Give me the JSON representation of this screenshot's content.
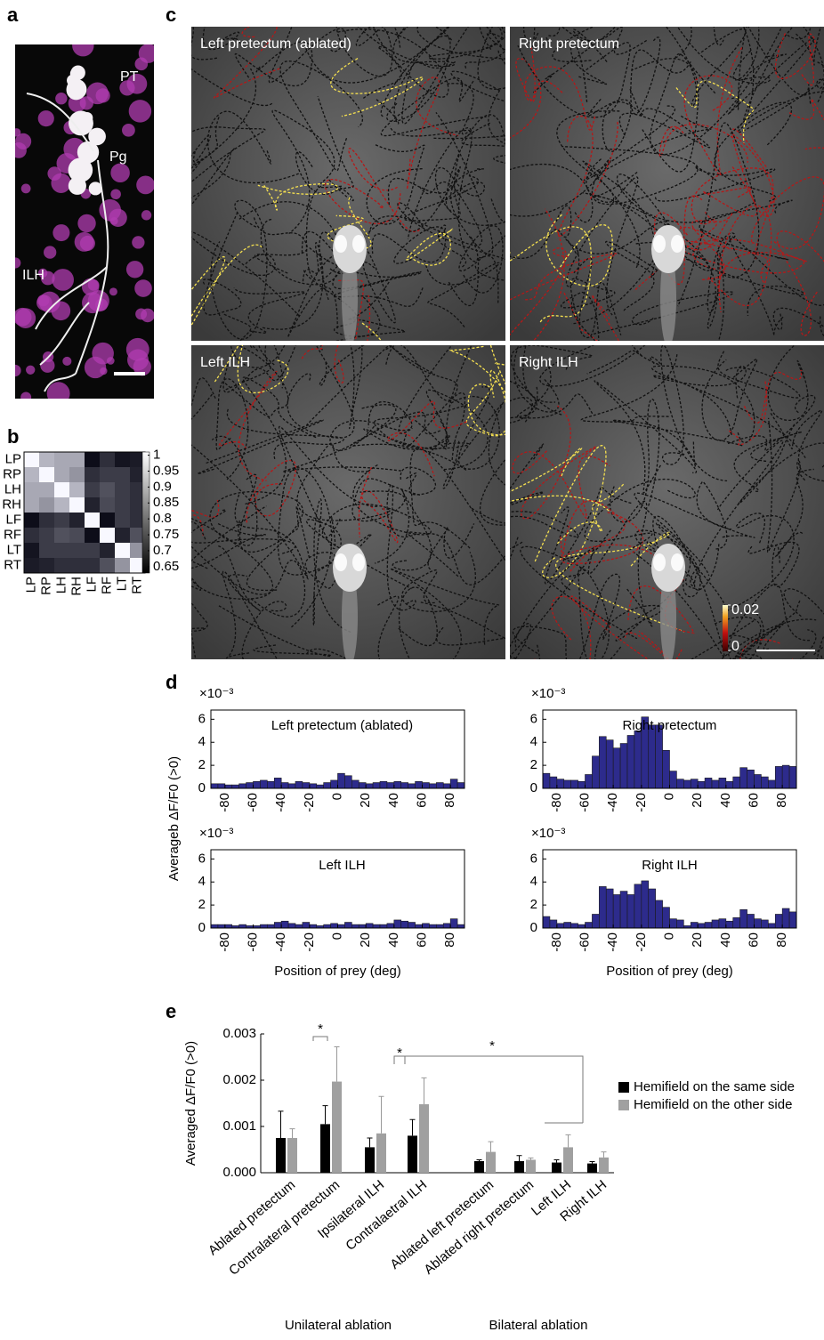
{
  "panel_labels": [
    "a",
    "b",
    "c",
    "d",
    "e"
  ],
  "panel_a": {
    "regions": [
      "PT",
      "Pg",
      "ILH"
    ]
  },
  "panel_c": {
    "titles": [
      "Left pretectum (ablated)",
      "Right pretectum",
      "Left ILH",
      "Right ILH"
    ],
    "colorbar_ticks": [
      0.02,
      0
    ]
  },
  "panel_d": {
    "ylabel": "Averageb ΔF/F0 (>0)"
  },
  "chart_data": [
    {
      "type": "heatmap",
      "row_labels": [
        "LP",
        "RP",
        "LH",
        "RH",
        "LF",
        "RF",
        "LT",
        "RT"
      ],
      "col_labels": [
        "LP",
        "RP",
        "LH",
        "RH",
        "LF",
        "RF",
        "LT",
        "RT"
      ],
      "values": [
        [
          1,
          0.9,
          0.88,
          0.88,
          0.65,
          0.7,
          0.66,
          0.67
        ],
        [
          0.9,
          1,
          0.88,
          0.85,
          0.7,
          0.72,
          0.72,
          0.68
        ],
        [
          0.88,
          0.88,
          1,
          0.9,
          0.72,
          0.75,
          0.72,
          0.7
        ],
        [
          0.88,
          0.85,
          0.9,
          1,
          0.68,
          0.74,
          0.72,
          0.7
        ],
        [
          0.65,
          0.7,
          0.72,
          0.68,
          1,
          0.65,
          0.72,
          0.7
        ],
        [
          0.7,
          0.72,
          0.75,
          0.74,
          0.65,
          1,
          0.68,
          0.75
        ],
        [
          0.66,
          0.72,
          0.72,
          0.72,
          0.72,
          0.68,
          1,
          0.85
        ],
        [
          0.67,
          0.68,
          0.7,
          0.7,
          0.7,
          0.75,
          0.85,
          1
        ]
      ],
      "clim": [
        0.63,
        1.01
      ],
      "colorbar_ticks": [
        1,
        0.95,
        0.9,
        0.85,
        0.8,
        0.75,
        0.7,
        0.65
      ]
    },
    {
      "type": "histogram",
      "title": "Left pretectum (ablated)",
      "offset_label": "×10⁻³",
      "color": "#2d2b8c",
      "bins": [
        -90,
        -85,
        -80,
        -75,
        -70,
        -65,
        -60,
        -55,
        -50,
        -45,
        -40,
        -35,
        -30,
        -25,
        -20,
        -15,
        -10,
        -5,
        0,
        5,
        10,
        15,
        20,
        25,
        30,
        35,
        40,
        45,
        50,
        55,
        60,
        65,
        70,
        75,
        80,
        85,
        90
      ],
      "values": [
        0.4,
        0.4,
        0.3,
        0.3,
        0.4,
        0.5,
        0.6,
        0.7,
        0.6,
        0.9,
        0.5,
        0.4,
        0.6,
        0.5,
        0.4,
        0.3,
        0.5,
        0.7,
        1.3,
        1.1,
        0.7,
        0.5,
        0.4,
        0.5,
        0.6,
        0.5,
        0.6,
        0.5,
        0.4,
        0.6,
        0.5,
        0.4,
        0.5,
        0.4,
        0.8,
        0.5
      ],
      "xlim": [
        -90,
        90
      ],
      "ylim": [
        0,
        6.8
      ],
      "xticks": [
        -80,
        -60,
        -40,
        -20,
        0,
        20,
        40,
        60,
        80
      ],
      "yticks": [
        0,
        2,
        4,
        6
      ]
    },
    {
      "type": "histogram",
      "title": "Right pretectum",
      "offset_label": "×10⁻³",
      "color": "#2d2b8c",
      "bins": [
        -90,
        -85,
        -80,
        -75,
        -70,
        -65,
        -60,
        -55,
        -50,
        -45,
        -40,
        -35,
        -30,
        -25,
        -20,
        -15,
        -10,
        -5,
        0,
        5,
        10,
        15,
        20,
        25,
        30,
        35,
        40,
        45,
        50,
        55,
        60,
        65,
        70,
        75,
        80,
        85,
        90
      ],
      "values": [
        1.3,
        1.0,
        0.8,
        0.7,
        0.7,
        0.6,
        1.2,
        2.8,
        4.5,
        4.2,
        3.5,
        3.9,
        4.6,
        5.0,
        6.2,
        5.5,
        5.5,
        3.3,
        1.5,
        0.8,
        0.7,
        0.8,
        0.6,
        0.9,
        0.7,
        0.9,
        0.6,
        1.0,
        1.8,
        1.6,
        1.2,
        1.0,
        0.7,
        1.9,
        2.0,
        1.9
      ],
      "xlim": [
        -90,
        90
      ],
      "ylim": [
        0,
        6.8
      ],
      "xticks": [
        -80,
        -60,
        -40,
        -20,
        0,
        20,
        40,
        60,
        80
      ],
      "yticks": [
        0,
        2,
        4,
        6
      ]
    },
    {
      "type": "histogram",
      "title": "Left ILH",
      "offset_label": "×10⁻³",
      "color": "#2d2b8c",
      "xlabel": "Position of prey (deg)",
      "bins": [
        -90,
        -85,
        -80,
        -75,
        -70,
        -65,
        -60,
        -55,
        -50,
        -45,
        -40,
        -35,
        -30,
        -25,
        -20,
        -15,
        -10,
        -5,
        0,
        5,
        10,
        15,
        20,
        25,
        30,
        35,
        40,
        45,
        50,
        55,
        60,
        65,
        70,
        75,
        80,
        85,
        90
      ],
      "values": [
        0.3,
        0.3,
        0.3,
        0.2,
        0.3,
        0.2,
        0.2,
        0.3,
        0.3,
        0.5,
        0.6,
        0.4,
        0.3,
        0.5,
        0.3,
        0.2,
        0.3,
        0.4,
        0.3,
        0.5,
        0.3,
        0.3,
        0.4,
        0.3,
        0.3,
        0.4,
        0.7,
        0.6,
        0.5,
        0.3,
        0.4,
        0.3,
        0.3,
        0.4,
        0.8,
        0.3
      ],
      "xlim": [
        -90,
        90
      ],
      "ylim": [
        0,
        6.8
      ],
      "xticks": [
        -80,
        -60,
        -40,
        -20,
        0,
        20,
        40,
        60,
        80
      ],
      "yticks": [
        0,
        2,
        4,
        6
      ]
    },
    {
      "type": "histogram",
      "title": "Right ILH",
      "offset_label": "×10⁻³",
      "color": "#2d2b8c",
      "xlabel": "Position of prey (deg)",
      "bins": [
        -90,
        -85,
        -80,
        -75,
        -70,
        -65,
        -60,
        -55,
        -50,
        -45,
        -40,
        -35,
        -30,
        -25,
        -20,
        -15,
        -10,
        -5,
        0,
        5,
        10,
        15,
        20,
        25,
        30,
        35,
        40,
        45,
        50,
        55,
        60,
        65,
        70,
        75,
        80,
        85,
        90
      ],
      "values": [
        1.0,
        0.7,
        0.4,
        0.5,
        0.4,
        0.3,
        0.5,
        1.2,
        3.6,
        3.4,
        2.9,
        3.2,
        2.9,
        3.8,
        4.1,
        3.4,
        2.4,
        1.8,
        0.8,
        0.7,
        0.2,
        0.5,
        0.4,
        0.5,
        0.7,
        0.8,
        0.6,
        0.9,
        1.6,
        1.2,
        0.8,
        0.7,
        0.4,
        1.2,
        1.7,
        1.4
      ],
      "xlim": [
        -90,
        90
      ],
      "ylim": [
        0,
        6.8
      ],
      "xticks": [
        -80,
        -60,
        -40,
        -20,
        0,
        20,
        40,
        60,
        80
      ],
      "yticks": [
        0,
        2,
        4,
        6
      ]
    },
    {
      "type": "bar",
      "ylabel": "Averaged ΔF/F0 (>0)",
      "categories": [
        "Ablated pretectum",
        "Contralateral pretectum",
        "Ipsilateral ILH",
        "Contralaetral ILH",
        "Ablated left pretectum",
        "Ablated right pretectum",
        "Left ILH",
        "Right ILH"
      ],
      "group_labels": [
        "Unilateral ablation",
        "Bilateral ablation"
      ],
      "series": [
        {
          "name": "Hemifield on the same side",
          "color": "#000000",
          "values": [
            0.00075,
            0.00105,
            0.00055,
            0.0008,
            0.00025,
            0.00025,
            0.00022,
            0.0002
          ],
          "errors": [
            0.00058,
            0.0004,
            0.0002,
            0.00035,
            3e-05,
            0.00012,
            6e-05,
            4e-05
          ]
        },
        {
          "name": "Hemifield on the other side",
          "color": "#a0a0a0",
          "values": [
            0.00075,
            0.00197,
            0.00085,
            0.00148,
            0.00045,
            0.00028,
            0.00055,
            0.00033
          ],
          "errors": [
            0.0002,
            0.00075,
            0.0008,
            0.00057,
            0.00022,
            4e-05,
            0.00027,
            0.00012
          ]
        }
      ],
      "ylim": [
        0,
        0.003
      ],
      "yticks": [
        {
          "value": 0,
          "label": "0.000"
        },
        {
          "value": 0.001,
          "label": "0.001"
        },
        {
          "value": 0.002,
          "label": "0.002"
        },
        {
          "value": 0.003,
          "label": "0.003"
        }
      ],
      "annotations": [
        "*",
        "*",
        "*"
      ],
      "legend": "right"
    }
  ]
}
